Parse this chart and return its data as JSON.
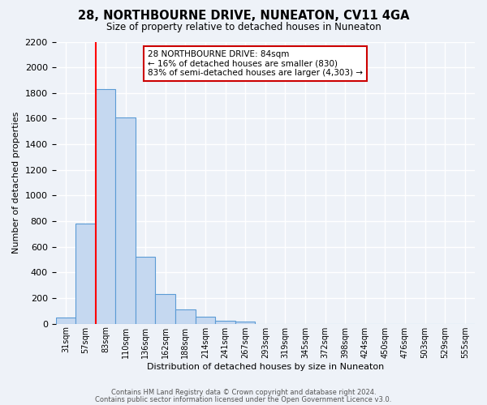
{
  "title": "28, NORTHBOURNE DRIVE, NUNEATON, CV11 4GA",
  "subtitle": "Size of property relative to detached houses in Nuneaton",
  "xlabel": "Distribution of detached houses by size in Nuneaton",
  "ylabel": "Number of detached properties",
  "bin_labels": [
    "31sqm",
    "57sqm",
    "83sqm",
    "110sqm",
    "136sqm",
    "162sqm",
    "188sqm",
    "214sqm",
    "241sqm",
    "267sqm",
    "293sqm",
    "319sqm",
    "345sqm",
    "372sqm",
    "398sqm",
    "424sqm",
    "450sqm",
    "476sqm",
    "503sqm",
    "529sqm",
    "555sqm"
  ],
  "bar_values": [
    50,
    780,
    1830,
    1610,
    520,
    230,
    110,
    55,
    25,
    20,
    0,
    0,
    0,
    0,
    0,
    0,
    0,
    0,
    0,
    0,
    0
  ],
  "bar_color": "#c5d8f0",
  "bar_edge_color": "#5b9bd5",
  "red_line_x_label": "83sqm",
  "ylim": [
    0,
    2200
  ],
  "yticks": [
    0,
    200,
    400,
    600,
    800,
    1000,
    1200,
    1400,
    1600,
    1800,
    2000,
    2200
  ],
  "annotation_title": "28 NORTHBOURNE DRIVE: 84sqm",
  "annotation_line1": "← 16% of detached houses are smaller (830)",
  "annotation_line2": "83% of semi-detached houses are larger (4,303) →",
  "footer_line1": "Contains HM Land Registry data © Crown copyright and database right 2024.",
  "footer_line2": "Contains public sector information licensed under the Open Government Licence v3.0.",
  "background_color": "#eef2f8",
  "plot_background": "#eef2f8",
  "grid_color": "#ffffff",
  "annotation_box_color": "#ffffff",
  "annotation_box_edge": "#cc0000"
}
